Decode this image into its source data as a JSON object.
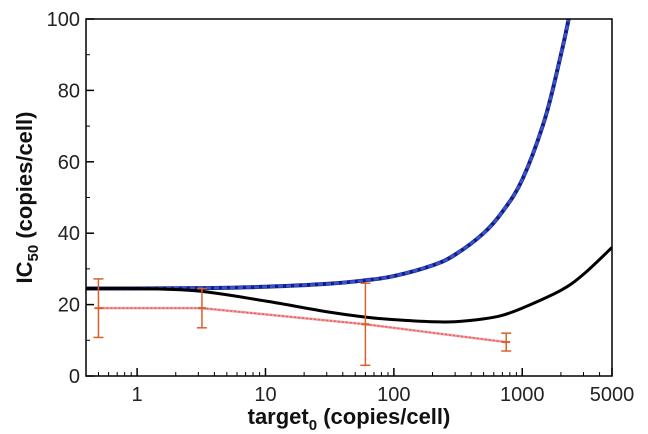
{
  "chart_data": {
    "type": "line",
    "title": "",
    "xlabel": {
      "main": "target",
      "sub": "0",
      "rest": " (copies/cell)"
    },
    "ylabel": {
      "main": "IC",
      "sub": "50",
      "rest": " (copies/cell)"
    },
    "xscale": "log",
    "xlim": [
      0.4,
      5000
    ],
    "ylim": [
      0,
      100
    ],
    "xticks": [
      {
        "value": 1,
        "label": "1"
      },
      {
        "value": 10,
        "label": "10"
      },
      {
        "value": 100,
        "label": "100"
      },
      {
        "value": 1000,
        "label": "1000"
      },
      {
        "value": 5000,
        "label": "5000"
      }
    ],
    "yticks": [
      {
        "value": 0,
        "label": "0"
      },
      {
        "value": 20,
        "label": "20"
      },
      {
        "value": 40,
        "label": "40"
      },
      {
        "value": 60,
        "label": "60"
      },
      {
        "value": 80,
        "label": "80"
      },
      {
        "value": 100,
        "label": "100"
      }
    ],
    "grid": false,
    "legend": "none",
    "series": [
      {
        "style": "dashed",
        "color": "#2f55d4",
        "x": [
          0.4,
          1,
          3,
          10,
          30,
          60,
          100,
          200,
          300,
          500,
          700,
          1000,
          1500,
          2000,
          2300
        ],
        "y": [
          24.5,
          24.5,
          24.6,
          25.0,
          25.8,
          26.8,
          28.0,
          31.0,
          34.0,
          40.0,
          46.0,
          55.0,
          72.0,
          90.0,
          100.0
        ]
      },
      {
        "style": "solid",
        "color": "#000000",
        "x": [
          0.4,
          1,
          3,
          10,
          30,
          60,
          100,
          200,
          300,
          500,
          700,
          1000,
          2000,
          3000,
          5000
        ],
        "y": [
          24.5,
          24.5,
          23.8,
          21.0,
          18.0,
          16.5,
          15.8,
          15.2,
          15.2,
          16.0,
          17.0,
          19.0,
          24.0,
          28.5,
          36.0
        ]
      },
      {
        "style": "dotted-with-errorbars",
        "color": "#e06060",
        "x": [
          0.5,
          3.2,
          60,
          750
        ],
        "y": [
          19.0,
          19.0,
          14.5,
          9.5
        ],
        "error": [
          8.2,
          5.5,
          11.5,
          2.5
        ]
      }
    ]
  }
}
